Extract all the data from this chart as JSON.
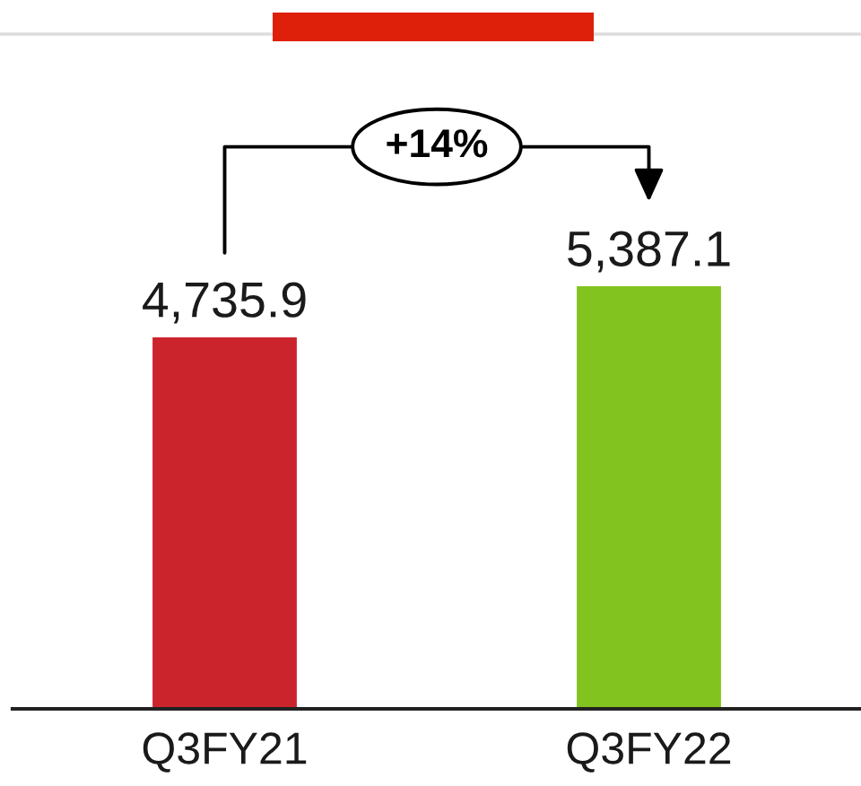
{
  "chart_data": {
    "type": "bar",
    "categories": [
      "Q3FY21",
      "Q3FY22"
    ],
    "values": [
      4735.9,
      5387.1
    ],
    "colors": [
      "#cc242c",
      "#82c31f"
    ],
    "value_labels": [
      "4,735.9",
      "5,387.1"
    ],
    "annotations": [
      "+14%"
    ]
  }
}
